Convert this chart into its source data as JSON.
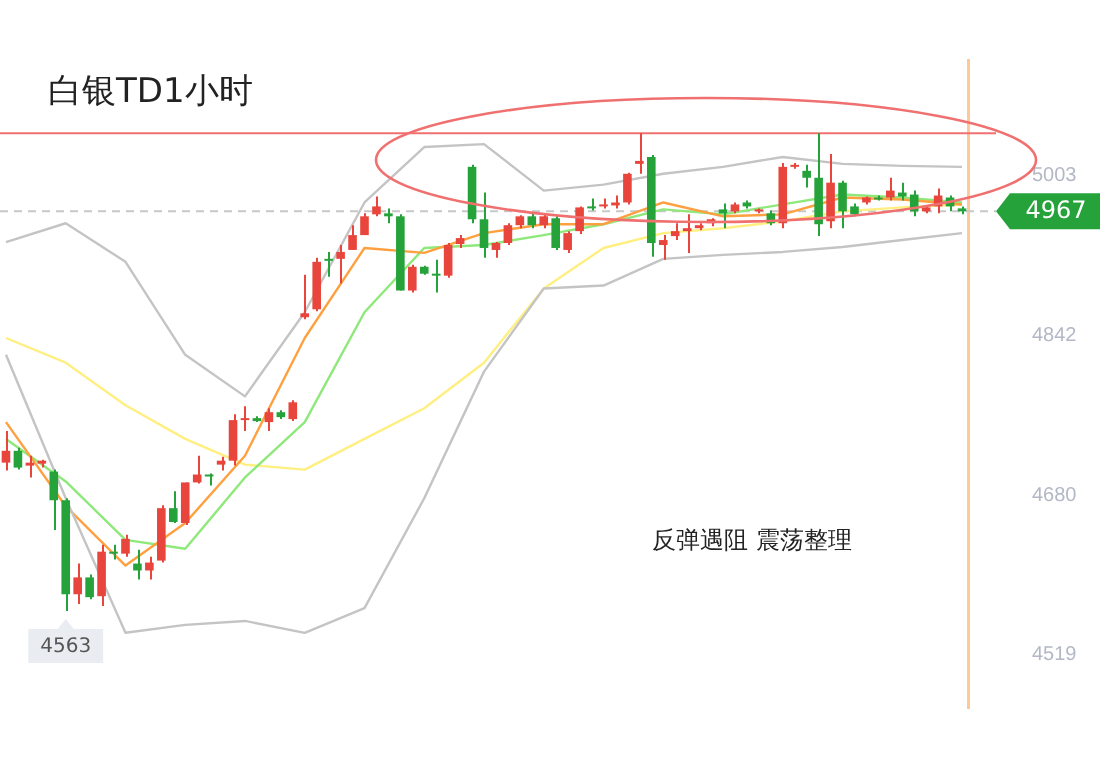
{
  "chart_data": {
    "type": "candlestick",
    "title": "白银TD1小时",
    "categories": [
      null,
      null,
      null,
      null,
      null,
      null,
      null,
      null,
      null,
      null,
      null,
      null,
      null,
      null,
      null,
      null,
      null,
      null,
      null,
      null,
      null,
      null,
      null,
      null,
      null,
      null,
      null,
      null,
      null,
      null,
      null,
      null,
      null,
      null,
      null,
      null,
      null,
      null,
      null,
      null,
      null,
      null,
      null,
      null,
      null,
      null,
      null,
      null,
      null,
      null,
      null,
      null,
      null,
      null,
      null,
      null,
      null,
      null,
      null,
      null,
      null,
      null,
      null,
      null,
      null,
      null,
      null,
      null,
      null,
      null,
      null,
      null,
      null,
      null,
      null,
      null,
      null,
      null,
      null,
      null,
      null
    ],
    "ohlc": [
      [
        4713,
        4745,
        4705,
        4725
      ],
      [
        4725,
        4728,
        4706,
        4708
      ],
      [
        4710,
        4720,
        4698,
        4713
      ],
      [
        4712,
        4716,
        4708,
        4715
      ],
      [
        4704,
        4706,
        4645,
        4675
      ],
      [
        4675,
        4677,
        4563,
        4580
      ],
      [
        4580,
        4611,
        4570,
        4597
      ],
      [
        4597,
        4600,
        4575,
        4577
      ],
      [
        4578,
        4630,
        4568,
        4623
      ],
      [
        4623,
        4630,
        4615,
        4621
      ],
      [
        4621,
        4640,
        4618,
        4636
      ],
      [
        4611,
        4625,
        4595,
        4604
      ],
      [
        4604,
        4618,
        4595,
        4612
      ],
      [
        4614,
        4670,
        4612,
        4667
      ],
      [
        4667,
        4684,
        4652,
        4653
      ],
      [
        4652,
        4693,
        4650,
        4693
      ],
      [
        4693,
        4720,
        4692,
        4701
      ],
      [
        4701,
        4702,
        4690,
        4699
      ],
      [
        4711,
        4719,
        4705,
        4715
      ],
      [
        4715,
        4762,
        4710,
        4756
      ],
      [
        4756,
        4770,
        4745,
        4758
      ],
      [
        4758,
        4760,
        4754,
        4755
      ],
      [
        4754,
        4768,
        4745,
        4764
      ],
      [
        4764,
        4766,
        4757,
        4759
      ],
      [
        4757,
        4776,
        4755,
        4774
      ],
      [
        4860,
        4903,
        4858,
        4864
      ],
      [
        4868,
        4920,
        4866,
        4916
      ],
      [
        4919,
        4926,
        4901,
        4917
      ],
      [
        4919,
        4933,
        4894,
        4926
      ],
      [
        4928,
        4953,
        4928,
        4943
      ],
      [
        4943,
        4965,
        4943,
        4962
      ],
      [
        4964,
        4982,
        4962,
        4972
      ],
      [
        4965,
        4970,
        4955,
        4962
      ],
      [
        4962,
        4964,
        4887,
        4887
      ],
      [
        4887,
        4913,
        4885,
        4911
      ],
      [
        4911,
        4912,
        4903,
        4904
      ],
      [
        4904,
        4918,
        4885,
        4902
      ],
      [
        4902,
        4935,
        4900,
        4933
      ],
      [
        4934,
        4943,
        4930,
        4940
      ],
      [
        5012,
        5014,
        4955,
        4959
      ],
      [
        4959,
        4986,
        4920,
        4930
      ],
      [
        4928,
        4936,
        4920,
        4935
      ],
      [
        4935,
        4955,
        4933,
        4953
      ],
      [
        4953,
        4963,
        4950,
        4962
      ],
      [
        4962,
        4965,
        4950,
        4953
      ],
      [
        4953,
        4964,
        4950,
        4962
      ],
      [
        4960,
        4962,
        4928,
        4930
      ],
      [
        4928,
        4947,
        4925,
        4945
      ],
      [
        4947,
        4972,
        4944,
        4971
      ],
      [
        4972,
        4980,
        4968,
        4970
      ],
      [
        4972,
        4980,
        4970,
        4974
      ],
      [
        4973,
        4983,
        4970,
        4976
      ],
      [
        4976,
        5006,
        4974,
        5005
      ],
      [
        5015,
        5046,
        5005,
        5018
      ],
      [
        5022,
        5024,
        4921,
        4935
      ],
      [
        4933,
        4943,
        4918,
        4938
      ],
      [
        4942,
        4955,
        4938,
        4947
      ],
      [
        4947,
        4964,
        4925,
        4950
      ],
      [
        4950,
        4955,
        4948,
        4953
      ],
      [
        4955,
        4960,
        4952,
        4959
      ],
      [
        4969,
        4975,
        4950,
        4965
      ],
      [
        4967,
        4976,
        4965,
        4974
      ],
      [
        4976,
        4978,
        4970,
        4972
      ],
      [
        4967,
        4970,
        4965,
        4969
      ],
      [
        4965,
        4968,
        4953,
        4955
      ],
      [
        4955,
        5016,
        4950,
        5012
      ],
      [
        5012,
        5016,
        5010,
        5013
      ],
      [
        5008,
        5014,
        4991,
        5001
      ],
      [
        5001,
        5046,
        4942,
        4954
      ],
      [
        4957,
        5025,
        4950,
        4996
      ],
      [
        4996,
        4998,
        4950,
        4967
      ],
      [
        4972,
        4975,
        4962,
        4964
      ],
      [
        4976,
        4982,
        4974,
        4981
      ],
      [
        4981,
        4983,
        4978,
        4979
      ],
      [
        4981,
        5001,
        4978,
        4988
      ],
      [
        4986,
        4996,
        4978,
        4982
      ],
      [
        4984,
        4988,
        4962,
        4967
      ],
      [
        4967,
        4972,
        4965,
        4971
      ],
      [
        4972,
        4990,
        4965,
        4983
      ],
      [
        4981,
        4983,
        4967,
        4972
      ],
      [
        4970,
        4972,
        4964,
        4967
      ]
    ],
    "colors": [
      "#e8453c",
      "#25a33a",
      "#e8453c",
      "#e8453c",
      "#25a33a",
      "#25a33a",
      "#e8453c",
      "#25a33a",
      "#e8453c",
      "#25a33a",
      "#e8453c",
      "#25a33a",
      "#e8453c",
      "#e8453c",
      "#25a33a",
      "#e8453c",
      "#e8453c",
      "#25a33a",
      "#e8453c",
      "#e8453c",
      "#e8453c",
      "#25a33a",
      "#e8453c",
      "#25a33a",
      "#e8453c",
      "#e8453c",
      "#e8453c",
      "#25a33a",
      "#e8453c",
      "#e8453c",
      "#e8453c",
      "#e8453c",
      "#25a33a",
      "#25a33a",
      "#e8453c",
      "#25a33a",
      "#25a33a",
      "#e8453c",
      "#e8453c",
      "#25a33a",
      "#25a33a",
      "#e8453c",
      "#e8453c",
      "#e8453c",
      "#25a33a",
      "#e8453c",
      "#25a33a",
      "#e8453c",
      "#e8453c",
      "#25a33a",
      "#e8453c",
      "#e8453c",
      "#e8453c",
      "#e8453c",
      "#25a33a",
      "#e8453c",
      "#e8453c",
      "#e8453c",
      "#e8453c",
      "#e8453c",
      "#25a33a",
      "#e8453c",
      "#25a33a",
      "#e8453c",
      "#25a33a",
      "#e8453c",
      "#e8453c",
      "#25a33a",
      "#25a33a",
      "#e8453c",
      "#25a33a",
      "#25a33a",
      "#e8453c",
      "#25a33a",
      "#e8453c",
      "#25a33a",
      "#25a33a",
      "#e8453c",
      "#e8453c",
      "#25a33a",
      "#25a33a"
    ],
    "series": [
      {
        "type": "line",
        "color": "#c4c4c4",
        "values": [
          4936,
          null,
          null,
          null,
          null,
          4955,
          null,
          null,
          null,
          null,
          4916,
          null,
          null,
          null,
          null,
          4822,
          null,
          null,
          null,
          null,
          4780,
          null,
          null,
          null,
          null,
          4865,
          null,
          null,
          null,
          null,
          4976,
          null,
          null,
          null,
          null,
          5032,
          null,
          null,
          null,
          null,
          5035,
          null,
          null,
          null,
          null,
          4988,
          null,
          null,
          null,
          null,
          4994,
          null,
          null,
          null,
          null,
          5005,
          null,
          null,
          null,
          null,
          5012,
          null,
          null,
          null,
          null,
          5022,
          null,
          null,
          null,
          null,
          5015,
          null,
          null,
          null,
          null,
          5013,
          null,
          null,
          null,
          null,
          5012
        ]
      },
      {
        "type": "line",
        "color": "#c4c4c4",
        "values": [
          4822,
          null,
          null,
          null,
          null,
          4677,
          null,
          null,
          null,
          null,
          4541,
          null,
          null,
          null,
          null,
          4549,
          null,
          null,
          null,
          null,
          4553,
          null,
          null,
          null,
          null,
          4541,
          null,
          null,
          null,
          null,
          4566,
          null,
          null,
          null,
          null,
          4677,
          null,
          null,
          null,
          null,
          4805,
          null,
          null,
          null,
          null,
          4889,
          null,
          null,
          null,
          null,
          4892,
          null,
          null,
          null,
          null,
          4919,
          null,
          null,
          null,
          null,
          4923,
          null,
          null,
          null,
          null,
          4926,
          null,
          null,
          null,
          null,
          4931,
          null,
          null,
          null,
          null,
          4938,
          null,
          null,
          null,
          null,
          4945
        ]
      },
      {
        "type": "line",
        "color": "#ffa040",
        "values": [
          4754,
          null,
          null,
          null,
          null,
          4669,
          null,
          null,
          null,
          null,
          4609,
          null,
          null,
          null,
          null,
          4652,
          null,
          null,
          null,
          null,
          4720,
          null,
          null,
          null,
          null,
          4839,
          null,
          null,
          null,
          null,
          4930,
          null,
          null,
          null,
          null,
          4925,
          null,
          null,
          null,
          null,
          4945,
          null,
          null,
          null,
          null,
          4954,
          null,
          null,
          null,
          null,
          4954,
          null,
          null,
          null,
          null,
          4976,
          null,
          null,
          null,
          null,
          4962,
          null,
          null,
          null,
          null,
          4964,
          null,
          null,
          null,
          null,
          4981,
          null,
          null,
          null,
          null,
          4979,
          null,
          null,
          null,
          null,
          4974
        ]
      },
      {
        "type": "line",
        "color": "#8ee87a",
        "values": [
          4737,
          null,
          null,
          null,
          null,
          4694,
          null,
          null,
          null,
          null,
          4635,
          null,
          null,
          null,
          null,
          4626,
          null,
          null,
          null,
          null,
          4698,
          null,
          null,
          null,
          null,
          4754,
          null,
          null,
          null,
          null,
          4865,
          null,
          null,
          null,
          null,
          4930,
          null,
          null,
          null,
          null,
          4933,
          null,
          null,
          null,
          null,
          4943,
          null,
          null,
          null,
          null,
          4954,
          null,
          null,
          null,
          null,
          4969,
          null,
          null,
          null,
          null,
          4964,
          null,
          null,
          null,
          null,
          4974,
          null,
          null,
          null,
          null,
          4984,
          null,
          null,
          null,
          null,
          4981,
          null,
          null,
          null,
          null,
          4976
        ]
      },
      {
        "type": "line",
        "color": "#ffef80",
        "values": [
          4839,
          null,
          null,
          null,
          null,
          4814,
          null,
          null,
          null,
          null,
          4771,
          null,
          null,
          null,
          null,
          4737,
          null,
          null,
          null,
          null,
          4711,
          null,
          null,
          null,
          null,
          4706,
          null,
          null,
          null,
          null,
          4737,
          null,
          null,
          null,
          null,
          4768,
          null,
          null,
          null,
          null,
          4814,
          null,
          null,
          null,
          null,
          4889,
          null,
          null,
          null,
          null,
          4930,
          null,
          null,
          null,
          null,
          4945,
          null,
          null,
          null,
          null,
          4950,
          null,
          null,
          null,
          null,
          4957,
          null,
          null,
          null,
          null,
          4967,
          null,
          null,
          null,
          null,
          4971,
          null,
          null,
          null,
          null,
          4974
        ]
      }
    ],
    "ylim": [
      4465,
      5120
    ],
    "yticks": [
      5003,
      4842,
      4680,
      4519
    ],
    "tick_labels": "y",
    "ref_lines": [
      {
        "axis": "y",
        "value": 5046,
        "color": "#f07070",
        "line_style": "solid"
      },
      {
        "axis": "y",
        "value": 4967,
        "label": "4967",
        "color": "#c8c8c8",
        "line_style": "dashed"
      }
    ],
    "annotations": [
      "反弹遇阻 震荡整理",
      {
        "text": "4563",
        "y": 4563
      }
    ]
  }
}
